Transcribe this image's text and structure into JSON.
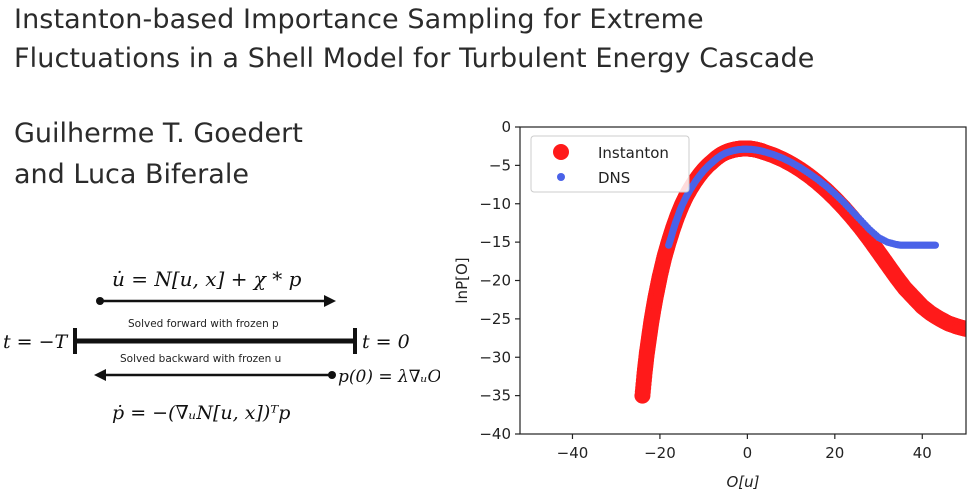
{
  "paper": {
    "title_line1": "Instanton-based Importance Sampling for Extreme",
    "title_line2": "Fluctuations in a Shell Model for Turbulent Energy Cascade",
    "author_line1": "Guilherme T. Goedert",
    "author_line2": "and Luca Biferale"
  },
  "diagram": {
    "forward_equation": "u̇ = N[u, x] + χ * p",
    "forward_caption": "Solved forward with frozen p",
    "backward_caption": "Solved backward with frozen u",
    "backward_equation": "ṗ = −(∇ᵤN[u, x])ᵀp",
    "left_time_label": "t = −T",
    "right_time_label": "t = 0",
    "final_condition": "p(0) = λ∇ᵤO"
  },
  "chart_data": {
    "type": "scatter",
    "title": "",
    "xlabel": "O[u]",
    "ylabel": "lnP[O]",
    "xlim": [
      -52,
      50
    ],
    "ylim": [
      -40,
      0
    ],
    "x_ticks": [
      -40,
      -20,
      0,
      20,
      40
    ],
    "y_ticks": [
      0,
      -5,
      -10,
      -15,
      -20,
      -25,
      -30,
      -35,
      -40
    ],
    "legend_position": "top-left",
    "grid": false,
    "series": [
      {
        "name": "Instanton",
        "color": "#ff1a1a",
        "marker": "large-circle",
        "x": [
          -24,
          -23.5,
          -23,
          -22.5,
          -22,
          -21.5,
          -21,
          -20.5,
          -20,
          -19,
          -18,
          -17,
          -16,
          -15,
          -14,
          -13,
          -12,
          -11,
          -10,
          -9,
          -8,
          -7,
          -6,
          -5,
          -4,
          -3,
          -2,
          -1,
          0,
          1,
          2,
          3,
          4,
          6,
          8,
          10,
          12,
          14,
          16,
          18,
          20,
          22,
          24,
          26,
          28,
          30,
          32,
          34,
          36,
          38,
          40,
          42,
          44,
          46,
          48,
          50
        ],
        "y": [
          -35,
          -32,
          -29.5,
          -27.5,
          -25.5,
          -23.8,
          -22.2,
          -20.8,
          -19.4,
          -17,
          -15,
          -13.2,
          -11.6,
          -10.2,
          -9,
          -8,
          -7.1,
          -6.3,
          -5.6,
          -5,
          -4.5,
          -4,
          -3.6,
          -3.3,
          -3.1,
          -2.95,
          -2.85,
          -2.8,
          -2.8,
          -2.85,
          -2.95,
          -3.1,
          -3.3,
          -3.7,
          -4.2,
          -4.8,
          -5.5,
          -6.3,
          -7.2,
          -8.2,
          -9.3,
          -10.5,
          -11.8,
          -13.2,
          -14.7,
          -16.3,
          -17.9,
          -19.5,
          -21,
          -22.2,
          -23.4,
          -24.3,
          -25,
          -25.6,
          -26,
          -26.3
        ]
      },
      {
        "name": "DNS",
        "color": "#4a62e8",
        "marker": "small-circle",
        "x": [
          -18,
          -17.5,
          -17,
          -16.5,
          -16,
          -15.5,
          -15,
          -14,
          -13,
          -12,
          -11,
          -10,
          -9,
          -8,
          -7,
          -6,
          -5,
          -4,
          -3,
          -2,
          -1,
          0,
          1,
          2,
          3,
          4,
          6,
          8,
          10,
          12,
          14,
          16,
          18,
          20,
          22,
          24,
          26,
          28,
          30,
          32,
          34,
          35,
          36,
          37,
          38,
          39,
          40,
          41,
          42,
          43
        ],
        "y": [
          -15.4,
          -14.5,
          -13.5,
          -12.6,
          -11.8,
          -11,
          -10.3,
          -9.1,
          -8.1,
          -7.2,
          -6.4,
          -5.7,
          -5.1,
          -4.6,
          -4.1,
          -3.7,
          -3.4,
          -3.2,
          -3.05,
          -2.95,
          -2.9,
          -2.9,
          -2.92,
          -3,
          -3.1,
          -3.25,
          -3.6,
          -4.05,
          -4.6,
          -5.25,
          -6,
          -6.8,
          -7.7,
          -8.7,
          -9.8,
          -11,
          -12.2,
          -13.4,
          -14.4,
          -15,
          -15.3,
          -15.4,
          -15.4,
          -15.4,
          -15.4,
          -15.4,
          -15.4,
          -15.4,
          -15.4,
          -15.4
        ]
      }
    ]
  }
}
